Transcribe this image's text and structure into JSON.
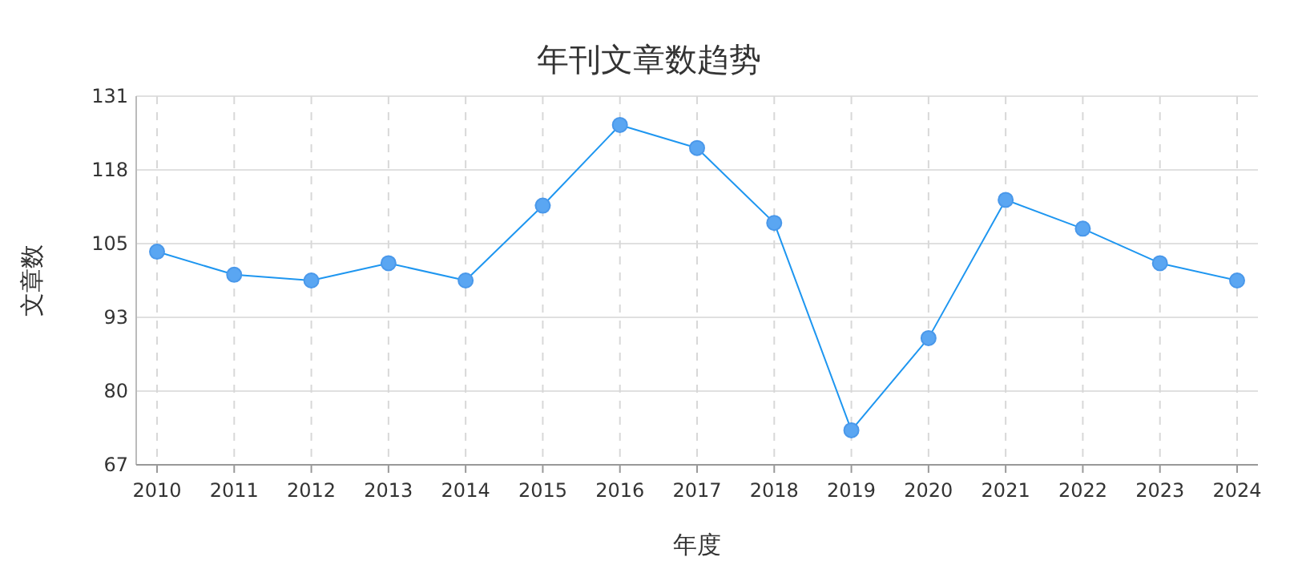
{
  "chart_data": {
    "type": "line",
    "title": "年刊文章数趋势",
    "xlabel": "年度",
    "ylabel": "文章数",
    "categories": [
      "2010",
      "2011",
      "2012",
      "2013",
      "2014",
      "2015",
      "2016",
      "2017",
      "2018",
      "2019",
      "2020",
      "2021",
      "2022",
      "2023",
      "2024"
    ],
    "series": [
      {
        "color": "#1e96f0",
        "values": [
          104,
          100,
          99,
          102,
          99,
          112,
          126,
          122,
          109,
          73,
          89,
          113,
          108,
          102,
          99
        ]
      }
    ],
    "ylim": [
      67,
      131
    ],
    "yticks": [
      67,
      {
        "value": 79.8,
        "label": "80"
      },
      {
        "value": 92.6,
        "label": "93"
      },
      {
        "value": 105.4,
        "label": "105"
      },
      {
        "value": 118.2,
        "label": "118"
      },
      131
    ],
    "grid": true,
    "marker": "circle",
    "line_style": "solid"
  }
}
